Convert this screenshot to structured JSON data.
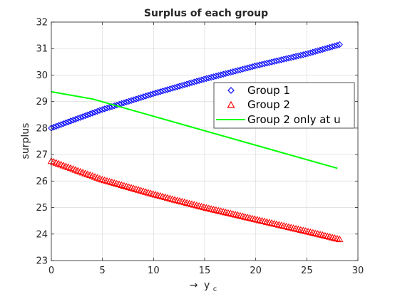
{
  "chart_data": {
    "type": "line",
    "title": "Surplus of each group",
    "xlabel_arrow": "→",
    "xlabel_var": "y",
    "xlabel_sub": "c",
    "ylabel": "surplus",
    "xlim": [
      0,
      30
    ],
    "ylim": [
      23,
      32
    ],
    "xticks": [
      0,
      5,
      10,
      15,
      20,
      25,
      30
    ],
    "yticks": [
      23,
      24,
      25,
      26,
      27,
      28,
      29,
      30,
      31,
      32
    ],
    "grid": true,
    "legend_position": "right",
    "series": [
      {
        "name": "Group 1",
        "marker": "diamond",
        "color": "#0000ff",
        "x_range": [
          0,
          28.2
        ],
        "n_points": 120,
        "y_anchors": [
          [
            0,
            28.0
          ],
          [
            5,
            28.7
          ],
          [
            10,
            29.3
          ],
          [
            15,
            29.85
          ],
          [
            20,
            30.35
          ],
          [
            25,
            30.8
          ],
          [
            28.2,
            31.15
          ]
        ]
      },
      {
        "name": "Group 2",
        "marker": "triangle",
        "color": "#ff0000",
        "x_range": [
          0,
          28.2
        ],
        "n_points": 120,
        "y_anchors": [
          [
            0,
            26.75
          ],
          [
            5,
            26.05
          ],
          [
            10,
            25.5
          ],
          [
            15,
            25.0
          ],
          [
            20,
            24.55
          ],
          [
            25,
            24.1
          ],
          [
            28.2,
            23.8
          ]
        ]
      },
      {
        "name": "Group 2 only at u",
        "marker": "none",
        "color": "#00ff00",
        "x": [
          0,
          4,
          28
        ],
        "y": [
          29.37,
          29.1,
          26.48
        ]
      }
    ]
  }
}
